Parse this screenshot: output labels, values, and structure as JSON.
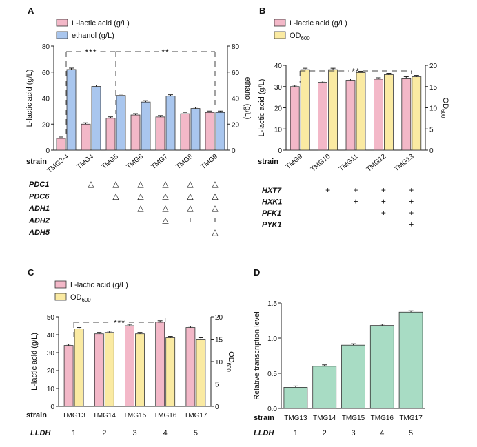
{
  "colors": {
    "lactic": "#f3b8c8",
    "ethanol": "#a9c6ee",
    "od": "#faeaa2",
    "transcription": "#a8dcc4",
    "axis": "#222222",
    "bracket": "#444444"
  },
  "strain_label": "strain",
  "lldh_label": "LLDH",
  "chart_data": [
    {
      "panel": "A",
      "type": "bar",
      "categories": [
        "TMG3-4",
        "TMG4",
        "TMG5",
        "TMG6",
        "TMG7",
        "TMG8",
        "TMG9"
      ],
      "series": [
        {
          "name": "L-lactic acid  (g/L)",
          "axis": "left",
          "values": [
            9,
            20,
            24.5,
            27,
            25.5,
            28,
            29
          ]
        },
        {
          "name": "ethanol (g/L)",
          "axis": "right",
          "values": [
            62,
            49,
            42,
            37,
            41.5,
            32,
            29
          ]
        }
      ],
      "ylabel": "L-lactic acid (g/L)",
      "ylabel_right": "ethanol (g/L)",
      "ylim": [
        0,
        80
      ],
      "yticks": [
        "0",
        "20",
        "40",
        "60",
        "80"
      ],
      "ylim_right": [
        0,
        80
      ],
      "yticks_right": [
        "0",
        "20",
        "40",
        "60",
        "80"
      ],
      "significance": [
        {
          "label": "***",
          "from": 0,
          "to": 2
        },
        {
          "label": "**",
          "from": 2,
          "to": 6
        }
      ],
      "genotype": {
        "genes": [
          "PDC1",
          "PDC6",
          "ADH1",
          "ADH2",
          "ADH5"
        ],
        "marks": [
          [
            "",
            "△",
            "△",
            "△",
            "△",
            "△",
            "△"
          ],
          [
            "",
            "",
            "△",
            "△",
            "△",
            "△",
            "△"
          ],
          [
            "",
            "",
            "",
            "△",
            "△",
            "△",
            "△"
          ],
          [
            "",
            "",
            "",
            "",
            "△",
            "+",
            "+"
          ],
          [
            "",
            "",
            "",
            "",
            "",
            "",
            "△"
          ]
        ]
      }
    },
    {
      "panel": "B",
      "type": "bar",
      "categories": [
        "TMG9",
        "TMG10",
        "TMG11",
        "TMG12",
        "TMG13"
      ],
      "series": [
        {
          "name": "L-lactic acid  (g/L)",
          "axis": "left",
          "values": [
            30,
            32,
            33,
            33.5,
            34
          ]
        },
        {
          "name": "OD600",
          "axis": "right",
          "values": [
            19,
            19,
            18.3,
            17.8,
            17.3
          ]
        }
      ],
      "ylabel": "L-lactic acid (g/L)",
      "ylabel_right": "OD600",
      "ylim": [
        0,
        40
      ],
      "yticks": [
        "0",
        "10",
        "20",
        "30",
        "40"
      ],
      "ylim_right": [
        0,
        20
      ],
      "yticks_right": [
        "0",
        "5",
        "10",
        "15",
        "20"
      ],
      "significance": [
        {
          "label": "**",
          "from": 0,
          "to": 4
        }
      ],
      "genotype": {
        "genes": [
          "HXT7",
          "HXK1",
          "PFK1",
          "PYK1"
        ],
        "marks": [
          [
            "",
            "+",
            "+",
            "+",
            "+"
          ],
          [
            "",
            "",
            "+",
            "+",
            "+"
          ],
          [
            "",
            "",
            "",
            "+",
            "+"
          ],
          [
            "",
            "",
            "",
            "",
            "+"
          ]
        ]
      }
    },
    {
      "panel": "C",
      "type": "bar",
      "categories": [
        "TMG13",
        "TMG14",
        "TMG15",
        "TMG16",
        "TMG17"
      ],
      "series": [
        {
          "name": "L-lactic acid  (g/L)",
          "axis": "left",
          "values": [
            34,
            40.5,
            45,
            47,
            44
          ]
        },
        {
          "name": "OD600",
          "axis": "right",
          "values": [
            17.3,
            16.5,
            16.2,
            15.3,
            15
          ]
        }
      ],
      "ylabel": "L-lactic acid (g/L)",
      "ylabel_right": "OD600",
      "ylim": [
        0,
        50
      ],
      "yticks": [
        "0",
        "10",
        "20",
        "30",
        "40",
        "50"
      ],
      "ylim_right": [
        0,
        20
      ],
      "yticks_right": [
        "0",
        "5",
        "10",
        "15",
        "20"
      ],
      "significance": [
        {
          "label": "***",
          "from": 0,
          "to": 3
        }
      ],
      "lldh": [
        "1",
        "2",
        "3",
        "4",
        "5"
      ]
    },
    {
      "panel": "D",
      "type": "bar",
      "categories": [
        "TMG13",
        "TMG14",
        "TMG15",
        "TMG16",
        "TMG17"
      ],
      "series": [
        {
          "name": "Relative transcription level",
          "axis": "left",
          "values": [
            0.3,
            0.6,
            0.9,
            1.18,
            1.37
          ]
        }
      ],
      "ylabel": "Relative transcription level",
      "ylim": [
        0,
        1.5
      ],
      "yticks": [
        "0.0",
        "0.5",
        "1.0",
        "1.5"
      ],
      "lldh": [
        "1",
        "2",
        "3",
        "4",
        "5"
      ]
    }
  ]
}
